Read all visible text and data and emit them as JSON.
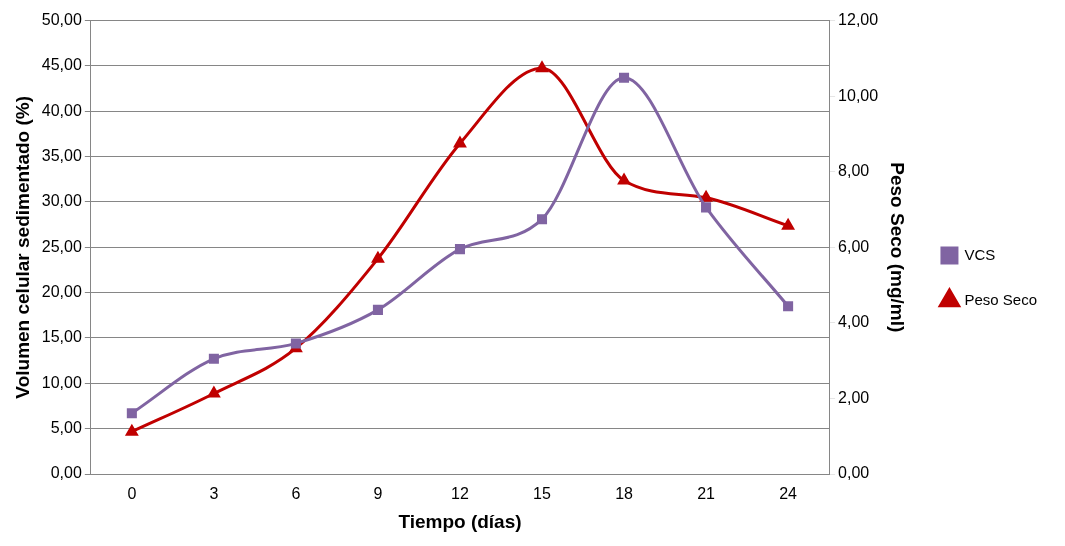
{
  "chart_data": {
    "type": "line",
    "xlabel": "Tiempo (días)",
    "ylabel": "Volumen celular sedimentado (%)",
    "y2label": "Peso Seco (mg/ml)",
    "categories": [
      "0",
      "3",
      "6",
      "9",
      "12",
      "15",
      "18",
      "21",
      "24"
    ],
    "series": [
      {
        "name": "VCS",
        "color": "#8064a2",
        "marker": "square",
        "values": [
          6.7,
          12.7,
          14.4,
          18.1,
          24.8,
          28.1,
          43.7,
          29.4,
          18.5
        ]
      },
      {
        "name": "Peso Seco",
        "color": "#c00000",
        "marker": "triangle",
        "axis": "y2",
        "values": [
          1.12,
          2.13,
          3.33,
          5.7,
          8.75,
          10.74,
          7.77,
          7.31,
          6.57
        ]
      }
    ],
    "ylim": [
      0,
      50
    ],
    "yticks": [
      {
        "value": 0,
        "label": "0,00"
      },
      {
        "value": 5,
        "label": "5,00"
      },
      {
        "value": 10,
        "label": "10,00"
      },
      {
        "value": 15,
        "label": "15,00"
      },
      {
        "value": 20,
        "label": "20,00"
      },
      {
        "value": 25,
        "label": "25,00"
      },
      {
        "value": 30,
        "label": "30,00"
      },
      {
        "value": 35,
        "label": "35,00"
      },
      {
        "value": 40,
        "label": "40,00"
      },
      {
        "value": 45,
        "label": "45,00"
      },
      {
        "value": 50,
        "label": "50,00"
      }
    ],
    "y2lim": [
      0,
      12
    ],
    "y2ticks": [
      {
        "value": 0,
        "label": "0,00"
      },
      {
        "value": 2,
        "label": "2,00"
      },
      {
        "value": 4,
        "label": "4,00"
      },
      {
        "value": 6,
        "label": "6,00"
      },
      {
        "value": 8,
        "label": "8,00"
      },
      {
        "value": 10,
        "label": "10,00"
      },
      {
        "value": 12,
        "label": "12,00"
      }
    ],
    "grid": "y",
    "legend": "right",
    "line_style": "solid"
  }
}
